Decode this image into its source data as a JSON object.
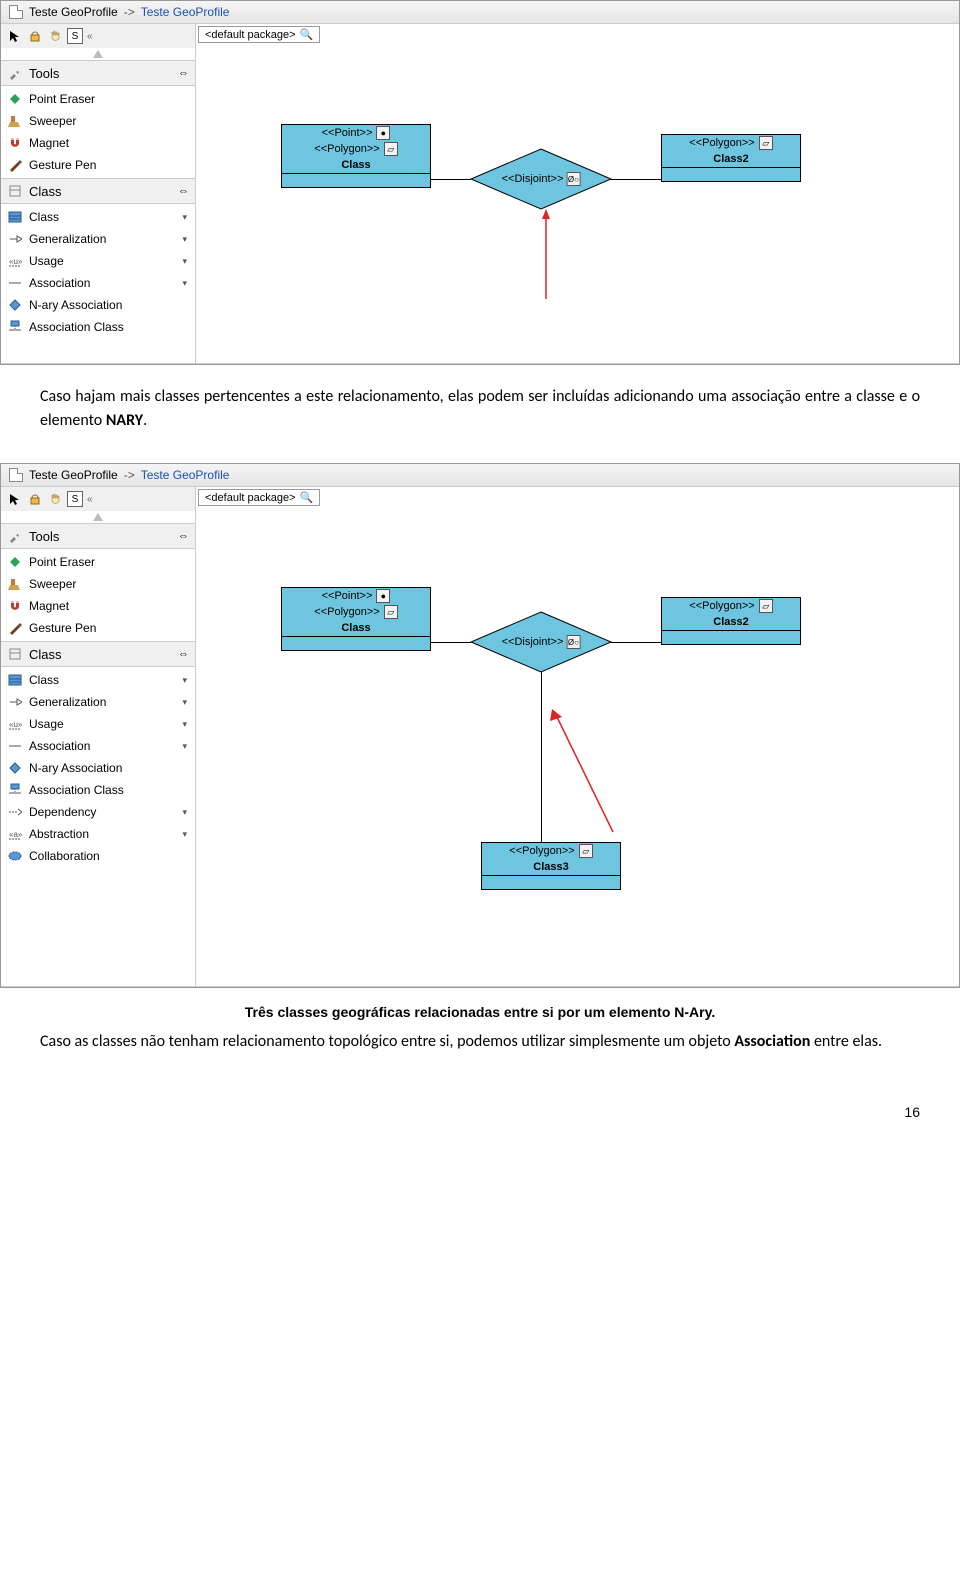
{
  "titlebar": {
    "project": "Teste GeoProfile",
    "sep": "->",
    "diagram": "Teste GeoProfile"
  },
  "palette": {
    "s_label": "S",
    "tools_label": "Tools",
    "class_label": "Class",
    "items_tools": [
      {
        "label": "Point Eraser",
        "icon": "point-eraser-icon",
        "color": "#2aa35a"
      },
      {
        "label": "Sweeper",
        "icon": "sweeper-icon",
        "color": "#c77a36"
      },
      {
        "label": "Magnet",
        "icon": "magnet-icon",
        "color": "#c0392b"
      },
      {
        "label": "Gesture Pen",
        "icon": "gesture-pen-icon",
        "color": "#7a3a1a"
      }
    ],
    "items_class1": [
      {
        "label": "Class",
        "icon": "class-icon",
        "expand": true
      },
      {
        "label": "Generalization",
        "icon": "generalization-icon",
        "expand": true
      },
      {
        "label": "Usage",
        "icon": "usage-icon",
        "expand": true
      },
      {
        "label": "Association",
        "icon": "association-icon",
        "expand": true
      },
      {
        "label": "N-ary Association",
        "icon": "nary-icon",
        "expand": false
      },
      {
        "label": "Association Class",
        "icon": "assoc-class-icon",
        "expand": false
      }
    ],
    "items_class2_extra": [
      {
        "label": "Dependency",
        "icon": "dependency-icon",
        "expand": true
      },
      {
        "label": "Abstraction",
        "icon": "abstraction-icon",
        "expand": true
      },
      {
        "label": "Collaboration",
        "icon": "collaboration-icon",
        "expand": false
      }
    ]
  },
  "canvas": {
    "pkg_label": "<default package>",
    "stereo_point": "<<Point>>",
    "stereo_polygon": "<<Polygon>>",
    "stereo_disjoint": "<<Disjoint>>",
    "class1_name": "Class",
    "class2_name": "Class2",
    "class3_name": "Class3"
  },
  "doc": {
    "p1": "Caso hajam mais classes pertencentes a este relacionamento, elas podem ser incluídas adicionando uma associação entre a classe e o elemento ",
    "p1_bold": "NARY",
    "p1_end": ".",
    "caption": "Três classes geográficas relacionadas entre si por um elemento N-Ary.",
    "p2": "Caso as classes não tenham relacionamento topológico entre si, podemos utilizar simplesmente um objeto ",
    "p2_bold": "Association",
    "p2_end": " entre elas.",
    "page": "16"
  },
  "colors": {
    "class_fill": "#6ec5df"
  }
}
